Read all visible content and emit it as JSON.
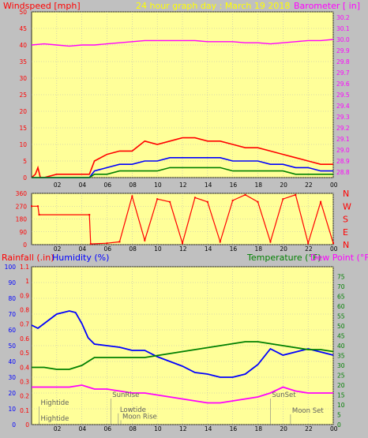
{
  "header": {
    "left": "Windspeed [mph]",
    "center": "24 hour graph day : March 19 2018",
    "right": "Barometer [ in]"
  },
  "lower_header": {
    "rainfall": "Rainfall (.in)",
    "humidity": "Humidity (%)",
    "temperature": "Temperature (°F)",
    "dewpoint": "Dew Point (°F)"
  },
  "colors": {
    "background": "#c0c0c0",
    "plot_bg": "#ffff99",
    "gust": "#ff0000",
    "wind_avg": "#0000ff",
    "wind_low": "#008000",
    "barometer": "#ff00ff",
    "direction": "#ff0000",
    "humidity": "#0000ff",
    "temperature": "#008000",
    "dewpoint": "#ff00ff"
  },
  "x_ticks": [
    "02",
    "04",
    "06",
    "08",
    "10",
    "12",
    "14",
    "16",
    "18",
    "20",
    "22",
    "00"
  ],
  "chart_data": [
    {
      "type": "line",
      "title": "24 hour graph day : March 19 2018",
      "x_unit": "hour",
      "ylabel": "Windspeed [mph]",
      "ylim": [
        0,
        50
      ],
      "y_ticks": [
        0,
        5,
        10,
        15,
        20,
        25,
        30,
        35,
        40,
        45,
        50
      ],
      "y2label": "Barometer [ in]",
      "y2lim": [
        28.75,
        30.25
      ],
      "y2_ticks": [
        28.8,
        28.9,
        29.0,
        29.1,
        29.2,
        29.3,
        29.4,
        29.5,
        29.6,
        29.7,
        29.8,
        29.9,
        30.0,
        30.1,
        30.2
      ],
      "series": [
        {
          "name": "gust",
          "color": "#ff0000",
          "axis": "y",
          "points": [
            [
              0,
              0
            ],
            [
              0.3,
              1
            ],
            [
              0.5,
              3
            ],
            [
              0.7,
              0
            ],
            [
              1,
              0
            ],
            [
              2,
              1
            ],
            [
              3,
              1
            ],
            [
              4,
              1
            ],
            [
              4.6,
              1
            ],
            [
              5,
              5
            ],
            [
              6,
              7
            ],
            [
              7,
              8
            ],
            [
              8,
              8
            ],
            [
              9,
              11
            ],
            [
              10,
              10
            ],
            [
              11,
              11
            ],
            [
              12,
              12
            ],
            [
              13,
              12
            ],
            [
              14,
              11
            ],
            [
              15,
              11
            ],
            [
              16,
              10
            ],
            [
              17,
              9
            ],
            [
              18,
              9
            ],
            [
              19,
              8
            ],
            [
              20,
              7
            ],
            [
              21,
              6
            ],
            [
              22,
              5
            ],
            [
              23,
              4
            ],
            [
              24,
              4
            ]
          ]
        },
        {
          "name": "wind",
          "color": "#0000ff",
          "axis": "y",
          "points": [
            [
              0,
              0
            ],
            [
              4.6,
              0
            ],
            [
              5,
              2
            ],
            [
              6,
              3
            ],
            [
              7,
              4
            ],
            [
              8,
              4
            ],
            [
              9,
              5
            ],
            [
              10,
              5
            ],
            [
              11,
              6
            ],
            [
              12,
              6
            ],
            [
              13,
              6
            ],
            [
              14,
              6
            ],
            [
              15,
              6
            ],
            [
              16,
              5
            ],
            [
              17,
              5
            ],
            [
              18,
              5
            ],
            [
              19,
              4
            ],
            [
              20,
              4
            ],
            [
              21,
              3
            ],
            [
              22,
              3
            ],
            [
              23,
              2
            ],
            [
              24,
              2
            ]
          ]
        },
        {
          "name": "wind-low",
          "color": "#008000",
          "axis": "y",
          "points": [
            [
              0,
              0
            ],
            [
              4.6,
              0
            ],
            [
              5,
              1
            ],
            [
              6,
              1
            ],
            [
              7,
              2
            ],
            [
              8,
              2
            ],
            [
              9,
              2
            ],
            [
              10,
              2
            ],
            [
              11,
              3
            ],
            [
              12,
              3
            ],
            [
              13,
              3
            ],
            [
              14,
              3
            ],
            [
              15,
              3
            ],
            [
              16,
              2
            ],
            [
              17,
              2
            ],
            [
              18,
              2
            ],
            [
              19,
              2
            ],
            [
              20,
              2
            ],
            [
              21,
              1
            ],
            [
              22,
              1
            ],
            [
              23,
              1
            ],
            [
              24,
              1
            ]
          ]
        },
        {
          "name": "barometer",
          "color": "#ff00ff",
          "axis": "y2",
          "points": [
            [
              0,
              29.95
            ],
            [
              1,
              29.96
            ],
            [
              2,
              29.95
            ],
            [
              3,
              29.94
            ],
            [
              4,
              29.95
            ],
            [
              5,
              29.95
            ],
            [
              6,
              29.96
            ],
            [
              7,
              29.97
            ],
            [
              8,
              29.98
            ],
            [
              9,
              29.99
            ],
            [
              10,
              29.99
            ],
            [
              11,
              29.99
            ],
            [
              12,
              29.99
            ],
            [
              13,
              29.99
            ],
            [
              14,
              29.98
            ],
            [
              15,
              29.98
            ],
            [
              16,
              29.98
            ],
            [
              17,
              29.97
            ],
            [
              18,
              29.97
            ],
            [
              19,
              29.96
            ],
            [
              20,
              29.97
            ],
            [
              21,
              29.98
            ],
            [
              22,
              29.99
            ],
            [
              23,
              29.99
            ],
            [
              24,
              30.0
            ]
          ]
        }
      ]
    },
    {
      "type": "scatter",
      "ylabel": "Wind Direction",
      "ylim": [
        0,
        360
      ],
      "y_ticks": [
        0,
        90,
        180,
        270,
        360
      ],
      "y2_ticks": [
        "N",
        "W",
        "S",
        "E",
        "N"
      ],
      "series": [
        {
          "name": "direction",
          "color": "#ff0000",
          "points": [
            [
              0,
              270
            ],
            [
              0.5,
              270
            ],
            [
              0.6,
              210
            ],
            [
              4.6,
              210
            ],
            [
              4.7,
              5
            ],
            [
              6,
              10
            ],
            [
              7,
              20
            ],
            [
              8,
              340
            ],
            [
              9,
              30
            ],
            [
              10,
              320
            ],
            [
              11,
              300
            ],
            [
              12,
              10
            ],
            [
              13,
              330
            ],
            [
              14,
              300
            ],
            [
              15,
              20
            ],
            [
              16,
              310
            ],
            [
              17,
              350
            ],
            [
              18,
              300
            ],
            [
              19,
              20
            ],
            [
              20,
              320
            ],
            [
              21,
              350
            ],
            [
              22,
              10
            ],
            [
              23,
              300
            ],
            [
              24,
              10
            ]
          ]
        }
      ]
    },
    {
      "type": "line",
      "ylabel": "Humidity (%)",
      "ylim": [
        0,
        100
      ],
      "y_ticks": [
        0,
        10,
        20,
        30,
        40,
        50,
        60,
        70,
        80,
        90,
        100
      ],
      "rain_ticks": [
        0,
        0.1,
        0.2,
        0.3,
        0.4,
        0.5,
        0.6,
        0.7,
        0.8,
        0.9,
        1.0,
        1.1
      ],
      "rain_ylim": [
        0,
        1.1
      ],
      "y2label": "Temperature (°F)",
      "y2lim": [
        0,
        80
      ],
      "y2_ticks": [
        0,
        5,
        10,
        15,
        20,
        25,
        30,
        35,
        40,
        45,
        50,
        55,
        60,
        65,
        70,
        75
      ],
      "series": [
        {
          "name": "humidity",
          "color": "#0000ff",
          "axis": "y",
          "points": [
            [
              0,
              63
            ],
            [
              0.5,
              61
            ],
            [
              1,
              64
            ],
            [
              2,
              70
            ],
            [
              3,
              72
            ],
            [
              3.5,
              71
            ],
            [
              4,
              64
            ],
            [
              4.5,
              55
            ],
            [
              5,
              51
            ],
            [
              6,
              50
            ],
            [
              7,
              49
            ],
            [
              8,
              47
            ],
            [
              9,
              47
            ],
            [
              10,
              43
            ],
            [
              11,
              40
            ],
            [
              12,
              37
            ],
            [
              13,
              33
            ],
            [
              14,
              32
            ],
            [
              15,
              30
            ],
            [
              16,
              30
            ],
            [
              17,
              32
            ],
            [
              17.5,
              35
            ],
            [
              18,
              38
            ],
            [
              19,
              48
            ],
            [
              20,
              44
            ],
            [
              21,
              46
            ],
            [
              22,
              48
            ],
            [
              23,
              46
            ],
            [
              24,
              44
            ]
          ]
        },
        {
          "name": "temperature",
          "color": "#008000",
          "axis": "y2",
          "points": [
            [
              0,
              29
            ],
            [
              1,
              29
            ],
            [
              2,
              28
            ],
            [
              3,
              28
            ],
            [
              4,
              30
            ],
            [
              5,
              34
            ],
            [
              6,
              34
            ],
            [
              7,
              34
            ],
            [
              8,
              34
            ],
            [
              9,
              34
            ],
            [
              10,
              35
            ],
            [
              11,
              36
            ],
            [
              12,
              37
            ],
            [
              13,
              38
            ],
            [
              14,
              39
            ],
            [
              15,
              40
            ],
            [
              16,
              41
            ],
            [
              17,
              42
            ],
            [
              18,
              42
            ],
            [
              19,
              41
            ],
            [
              20,
              40
            ],
            [
              21,
              39
            ],
            [
              22,
              38
            ],
            [
              23,
              38
            ],
            [
              24,
              37
            ]
          ]
        },
        {
          "name": "dewpoint",
          "color": "#ff00ff",
          "axis": "y2",
          "points": [
            [
              0,
              19
            ],
            [
              1,
              19
            ],
            [
              2,
              19
            ],
            [
              3,
              19
            ],
            [
              4,
              20
            ],
            [
              5,
              18
            ],
            [
              6,
              18
            ],
            [
              7,
              17
            ],
            [
              8,
              16
            ],
            [
              9,
              16
            ],
            [
              10,
              15
            ],
            [
              11,
              14
            ],
            [
              12,
              13
            ],
            [
              13,
              12
            ],
            [
              14,
              11
            ],
            [
              15,
              11
            ],
            [
              16,
              12
            ],
            [
              17,
              13
            ],
            [
              18,
              14
            ],
            [
              19,
              16
            ],
            [
              20,
              19
            ],
            [
              21,
              17
            ],
            [
              22,
              16
            ],
            [
              23,
              16
            ],
            [
              24,
              16
            ]
          ]
        }
      ],
      "annotations": [
        {
          "label": "Hightide",
          "x": 0.6,
          "y": 10
        },
        {
          "label": "Hightide",
          "x": 0.6,
          "y": 2
        },
        {
          "label": "SunRise",
          "x": 6.3,
          "y": 14
        },
        {
          "label": "Lowtide",
          "x": 6.9,
          "y": 6.5
        },
        {
          "label": "Moon Rise",
          "x": 7.1,
          "y": 3
        },
        {
          "label": "SunSet",
          "x": 19.0,
          "y": 14
        },
        {
          "label": "Moon Set",
          "x": 20.6,
          "y": 6
        }
      ]
    }
  ]
}
